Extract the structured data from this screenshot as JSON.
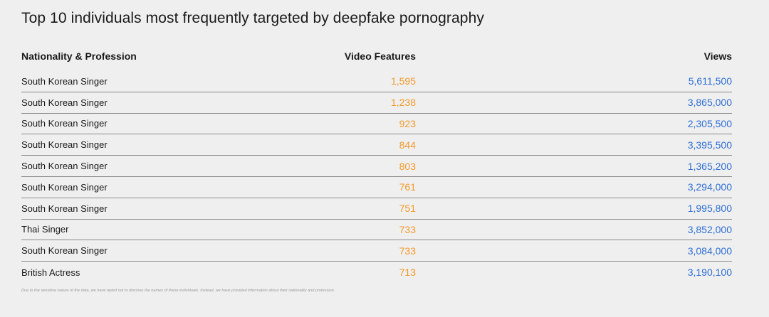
{
  "chart_data": {
    "type": "table",
    "title": "Top 10 individuals most frequently targeted by deepfake pornography",
    "columns": [
      "Nationality & Profession",
      "Video Features",
      "Views"
    ],
    "rows": [
      {
        "profession": "South Korean Singer",
        "video_features": "1,595",
        "views": "5,611,500"
      },
      {
        "profession": "South Korean Singer",
        "video_features": "1,238",
        "views": "3,865,000"
      },
      {
        "profession": "South Korean Singer",
        "video_features": "923",
        "views": "2,305,500"
      },
      {
        "profession": "South Korean Singer",
        "video_features": "844",
        "views": "3,395,500"
      },
      {
        "profession": "South Korean Singer",
        "video_features": "803",
        "views": "1,365,200"
      },
      {
        "profession": "South Korean Singer",
        "video_features": "761",
        "views": "3,294,000"
      },
      {
        "profession": "South Korean Singer",
        "video_features": "751",
        "views": "1,995,800"
      },
      {
        "profession": "Thai Singer",
        "video_features": "733",
        "views": "3,852,000"
      },
      {
        "profession": "South Korean Singer",
        "video_features": "733",
        "views": "3,084,000"
      },
      {
        "profession": "British Actress",
        "video_features": "713",
        "views": "3,190,100"
      }
    ],
    "footnote": "Due to the sensitive nature of the data, we have opted not to disclose the names of these individuals. Instead, we have provided information about their nationality and profession."
  },
  "colors": {
    "video_features": "#f39a2b",
    "views": "#2f6fd6",
    "background": "#efefef",
    "divider": "#8a8a8a"
  }
}
